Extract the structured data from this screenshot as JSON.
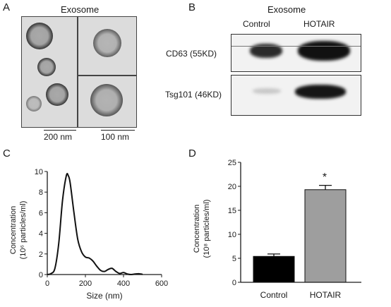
{
  "panel_a": {
    "letter": "A",
    "title": "Exosome",
    "scale_left": "200 nm",
    "scale_right": "100 nm"
  },
  "panel_b": {
    "letter": "B",
    "title": "Exosome",
    "lanes": [
      "Control",
      "HOTAIR"
    ],
    "blot_rows": [
      "CD63 (55KD)",
      "Tsg101 (46KD)"
    ]
  },
  "panel_c": {
    "letter": "C",
    "ylabel_line1": "Concentration",
    "ylabel_line2": "(10⁶ particles/ml)"
  },
  "panel_d": {
    "letter": "D",
    "ylabel_line1": "Concentration",
    "ylabel_line2": "(10⁸ particles/ml)",
    "significance": "*"
  },
  "chart_data": [
    {
      "type": "line",
      "panel": "C",
      "xlabel": "Size (nm)",
      "ylabel": "Concentration (10^6 particles/ml)",
      "xlim": [
        0,
        600
      ],
      "ylim": [
        0,
        10
      ],
      "xticks": [
        0,
        200,
        400,
        600
      ],
      "yticks": [
        0,
        2,
        4,
        6,
        8,
        10
      ],
      "x": [
        0,
        20,
        40,
        60,
        80,
        100,
        110,
        120,
        140,
        160,
        180,
        200,
        220,
        240,
        260,
        280,
        300,
        320,
        340,
        360,
        380,
        400,
        420,
        440,
        460,
        480,
        500
      ],
      "y": [
        0,
        0.1,
        0.6,
        3.0,
        7.2,
        9.6,
        9.6,
        8.9,
        6.0,
        3.4,
        2.2,
        1.7,
        1.6,
        1.3,
        0.8,
        0.4,
        0.3,
        0.5,
        0.6,
        0.3,
        0.1,
        0.2,
        0.05,
        0.0,
        0.05,
        0.08,
        0.02
      ]
    },
    {
      "type": "bar",
      "panel": "D",
      "categories": [
        "Control",
        "HOTAIR"
      ],
      "values": [
        5.4,
        19.3
      ],
      "errors": [
        0.5,
        0.9
      ],
      "colors": [
        "#000000",
        "#9e9e9e"
      ],
      "ylabel": "Concentration (10^8 particles/ml)",
      "ylim": [
        0,
        25
      ],
      "yticks": [
        0,
        5,
        10,
        15,
        20,
        25
      ]
    }
  ]
}
